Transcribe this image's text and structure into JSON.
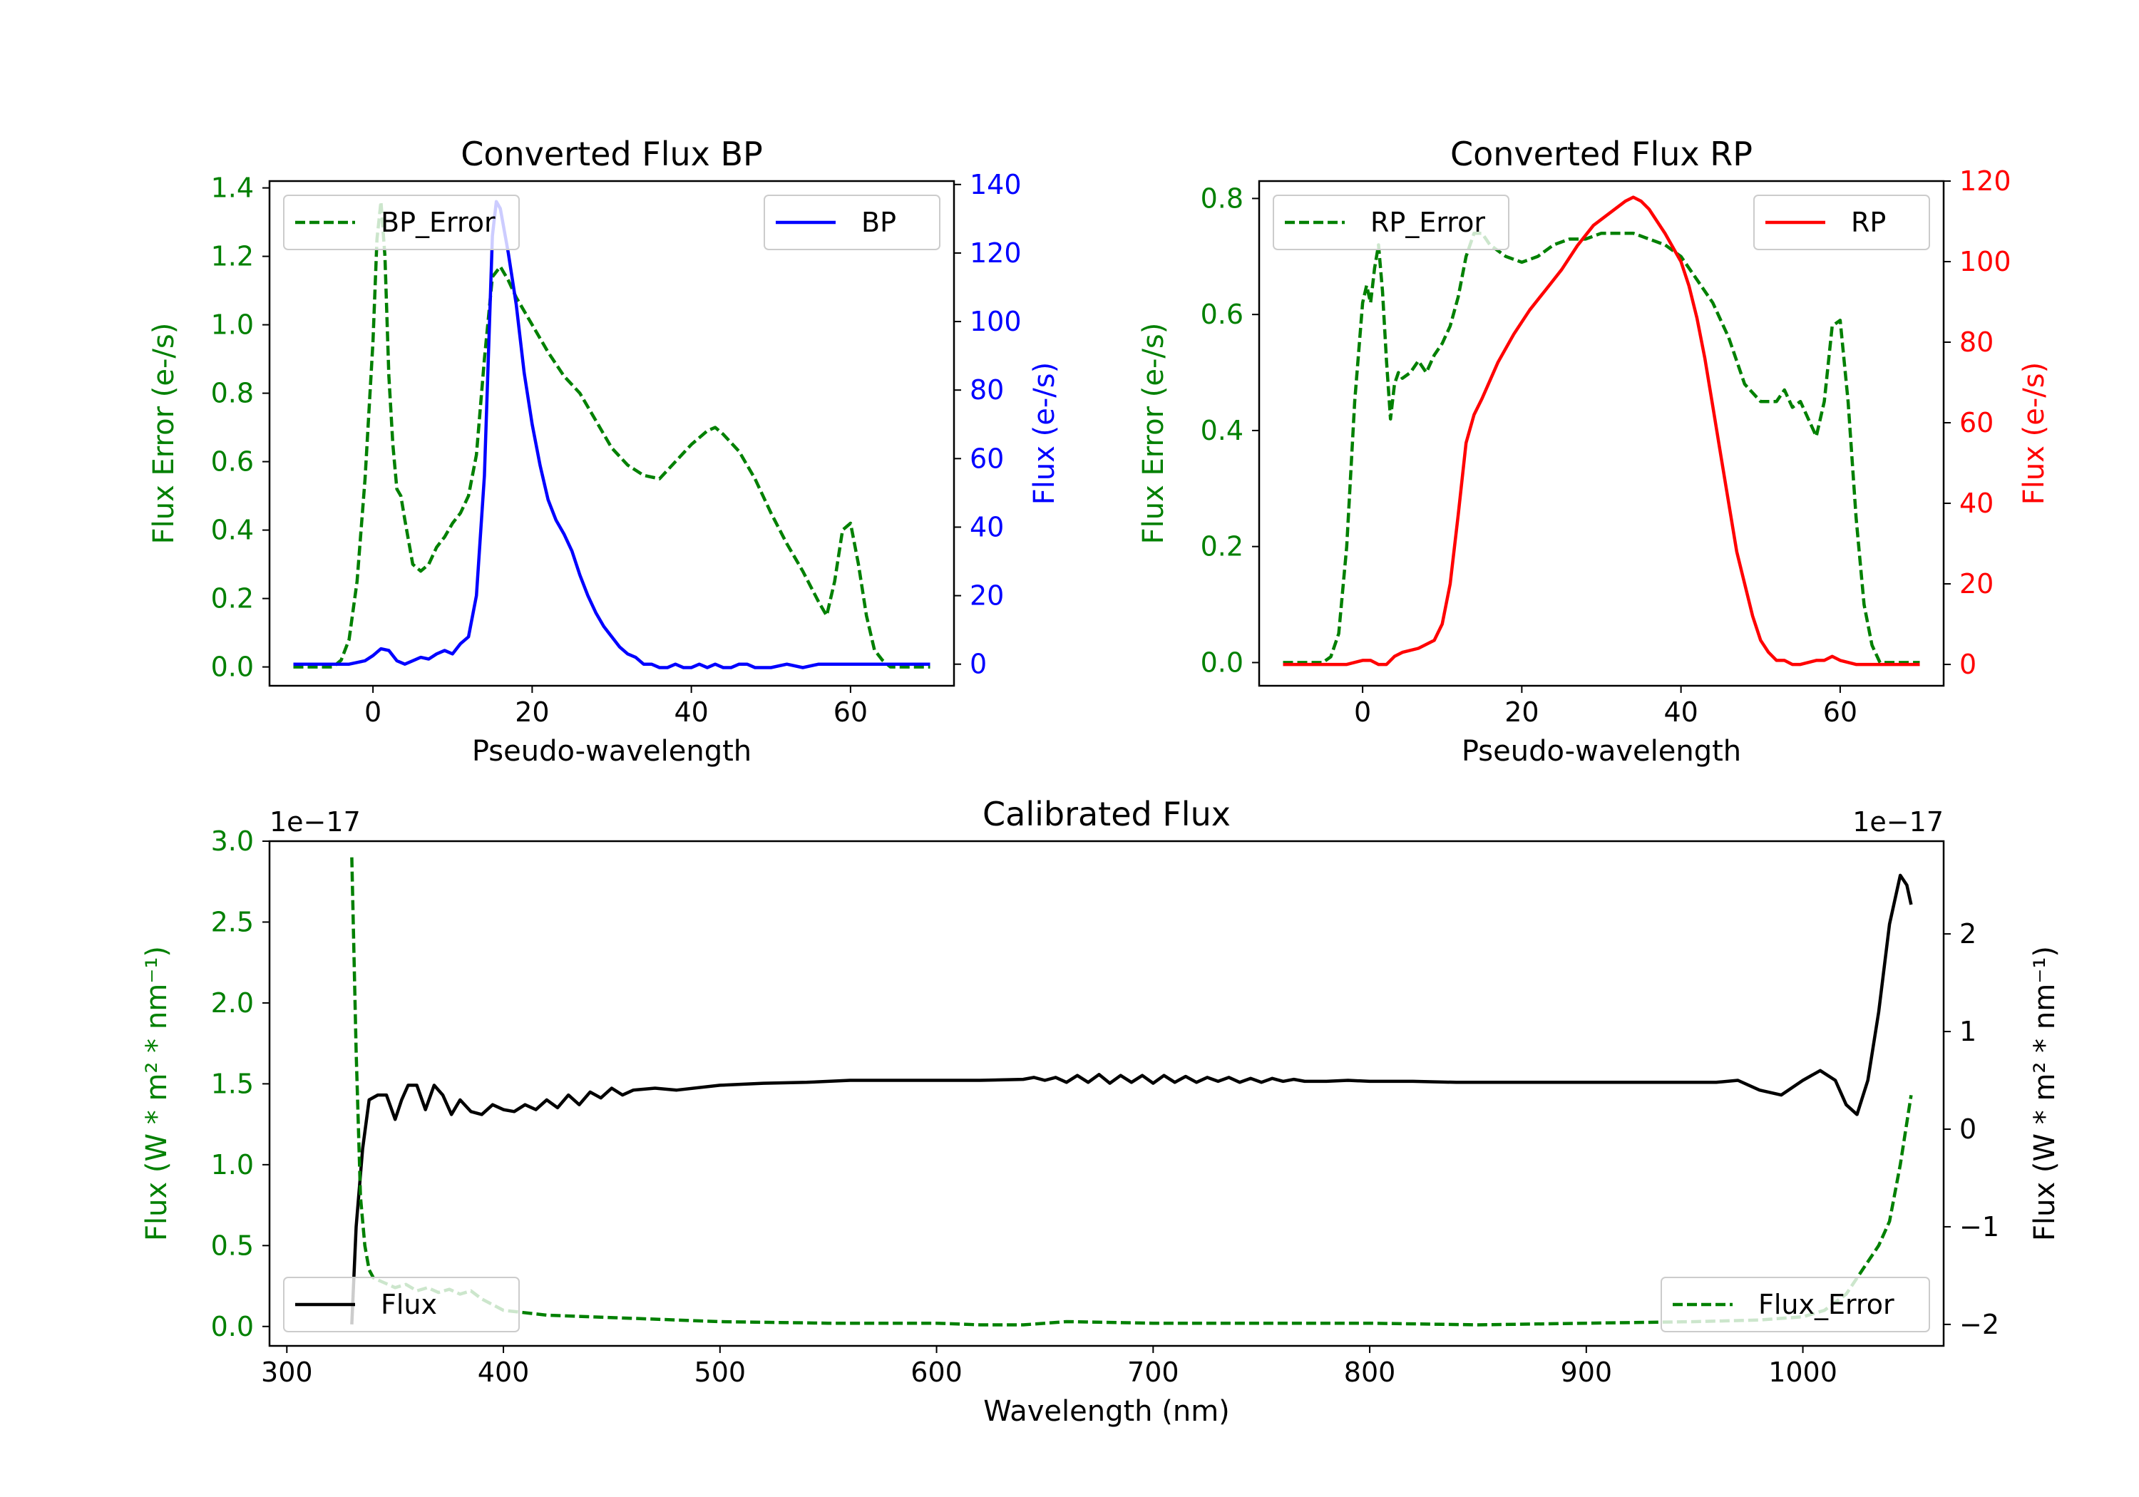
{
  "chart_data": [
    {
      "id": "bp",
      "type": "line",
      "title": "Converted Flux BP",
      "xlabel": "Pseudo-wavelength",
      "xlim": [
        -13,
        73
      ],
      "xticks": [
        0,
        20,
        40,
        60
      ],
      "y_left": {
        "label": "Flux Error (e-/s)",
        "color": "#008000",
        "lim": [
          -0.055,
          1.42
        ],
        "ticks": [
          "0.0",
          "0.2",
          "0.4",
          "0.6",
          "0.8",
          "1.0",
          "1.2",
          "1.4"
        ],
        "tickvals": [
          0,
          0.2,
          0.4,
          0.6,
          0.8,
          1.0,
          1.2,
          1.4
        ]
      },
      "y_right": {
        "label": "Flux (e-/s)",
        "color": "#0000ff",
        "lim": [
          -6.3,
          141
        ],
        "ticks": [
          "0",
          "20",
          "40",
          "60",
          "80",
          "100",
          "120",
          "140"
        ],
        "tickvals": [
          0,
          20,
          40,
          60,
          80,
          100,
          120,
          140
        ]
      },
      "legend_left": "BP_Error",
      "legend_right": "BP",
      "series": [
        {
          "name": "BP_Error",
          "axis": "left",
          "color": "#008000",
          "dash": true,
          "x": [
            -10,
            -5,
            -4,
            -3,
            -2,
            -1,
            0,
            0.5,
            1,
            1.5,
            2,
            2.5,
            3,
            3.5,
            4,
            5,
            6,
            7,
            8,
            9,
            10,
            11,
            12,
            13,
            14,
            15,
            16,
            17,
            18,
            19,
            20,
            22,
            24,
            26,
            28,
            30,
            32,
            34,
            36,
            38,
            40,
            42,
            43,
            44,
            46,
            48,
            50,
            52,
            54,
            56,
            57,
            58,
            59,
            60,
            61,
            62,
            63,
            64,
            65,
            70
          ],
          "y": [
            0,
            0,
            0.02,
            0.08,
            0.25,
            0.55,
            0.95,
            1.25,
            1.36,
            1.2,
            0.85,
            0.65,
            0.52,
            0.5,
            0.43,
            0.3,
            0.28,
            0.3,
            0.35,
            0.38,
            0.42,
            0.45,
            0.5,
            0.62,
            0.9,
            1.14,
            1.17,
            1.13,
            1.08,
            1.04,
            1.0,
            0.92,
            0.85,
            0.8,
            0.72,
            0.64,
            0.59,
            0.56,
            0.55,
            0.6,
            0.65,
            0.69,
            0.7,
            0.68,
            0.63,
            0.55,
            0.45,
            0.36,
            0.28,
            0.19,
            0.15,
            0.25,
            0.4,
            0.42,
            0.3,
            0.15,
            0.05,
            0.02,
            0,
            0
          ]
        },
        {
          "name": "BP",
          "axis": "right",
          "color": "#0000ff",
          "dash": false,
          "x": [
            -10,
            -5,
            -3,
            -2,
            -1,
            0,
            1,
            2,
            3,
            4,
            5,
            6,
            7,
            8,
            9,
            10,
            11,
            12,
            13,
            14,
            15,
            15.5,
            16,
            17,
            18,
            19,
            20,
            21,
            22,
            23,
            24,
            25,
            26,
            27,
            28,
            29,
            30,
            31,
            32,
            33,
            34,
            35,
            36,
            37,
            38,
            39,
            40,
            41,
            42,
            43,
            44,
            45,
            46,
            47,
            48,
            50,
            52,
            54,
            56,
            58,
            60,
            62,
            65,
            70
          ],
          "y": [
            0,
            0,
            0,
            0.5,
            1,
            2.5,
            4.5,
            4,
            1,
            0,
            1,
            2,
            1.5,
            3,
            4,
            3,
            6,
            8,
            20,
            55,
            125,
            135,
            133,
            120,
            105,
            85,
            70,
            58,
            48,
            42,
            38,
            33,
            26,
            20,
            15,
            11,
            8,
            5,
            3,
            2,
            0,
            0,
            -1,
            -1,
            0,
            -1,
            -1,
            0,
            -1,
            0,
            -1,
            -1,
            0,
            0,
            -1,
            -1,
            0,
            -1,
            0,
            0,
            0,
            0,
            0,
            0
          ]
        }
      ]
    },
    {
      "id": "rp",
      "type": "line",
      "title": "Converted Flux RP",
      "xlabel": "Pseudo-wavelength",
      "xlim": [
        -13,
        73
      ],
      "xticks": [
        0,
        20,
        40,
        60
      ],
      "y_left": {
        "label": "Flux Error (e-/s)",
        "color": "#008000",
        "lim": [
          -0.04,
          0.83
        ],
        "ticks": [
          "0.0",
          "0.2",
          "0.4",
          "0.6",
          "0.8"
        ],
        "tickvals": [
          0,
          0.2,
          0.4,
          0.6,
          0.8
        ]
      },
      "y_right": {
        "label": "Flux (e-/s)",
        "color": "#ff0000",
        "lim": [
          -5.3,
          120
        ],
        "ticks": [
          "0",
          "20",
          "40",
          "60",
          "80",
          "100",
          "120"
        ],
        "tickvals": [
          0,
          20,
          40,
          60,
          80,
          100,
          120
        ]
      },
      "legend_left": "RP_Error",
      "legend_right": "RP",
      "series": [
        {
          "name": "RP_Error",
          "axis": "left",
          "color": "#008000",
          "dash": true,
          "x": [
            -10,
            -5,
            -4,
            -3,
            -2,
            -1,
            0,
            0.5,
            1,
            1.5,
            2,
            2.5,
            3,
            3.5,
            4,
            4.5,
            5,
            6,
            7,
            8,
            9,
            10,
            11,
            12,
            13,
            14,
            15,
            16,
            18,
            20,
            22,
            24,
            26,
            28,
            30,
            32,
            34,
            36,
            38,
            40,
            42,
            44,
            46,
            48,
            50,
            52,
            53,
            54,
            55,
            56,
            57,
            58,
            59,
            60,
            61,
            62,
            63,
            64,
            65,
            70
          ],
          "y": [
            0,
            0,
            0.01,
            0.05,
            0.2,
            0.45,
            0.62,
            0.65,
            0.62,
            0.68,
            0.72,
            0.64,
            0.52,
            0.42,
            0.48,
            0.5,
            0.49,
            0.5,
            0.52,
            0.5,
            0.53,
            0.55,
            0.58,
            0.63,
            0.7,
            0.74,
            0.74,
            0.72,
            0.7,
            0.69,
            0.7,
            0.72,
            0.73,
            0.73,
            0.74,
            0.74,
            0.74,
            0.73,
            0.72,
            0.7,
            0.66,
            0.62,
            0.56,
            0.48,
            0.45,
            0.45,
            0.47,
            0.44,
            0.45,
            0.42,
            0.39,
            0.45,
            0.58,
            0.59,
            0.45,
            0.25,
            0.1,
            0.03,
            0,
            0
          ]
        },
        {
          "name": "RP",
          "axis": "right",
          "color": "#ff0000",
          "dash": false,
          "x": [
            -10,
            -5,
            -2,
            0,
            1,
            2,
            3,
            4,
            5,
            7,
            9,
            10,
            11,
            12,
            13,
            14,
            15,
            17,
            19,
            21,
            23,
            25,
            27,
            29,
            31,
            33,
            34,
            35,
            36,
            37,
            38,
            40,
            41,
            42,
            43,
            44,
            45,
            47,
            49,
            50,
            51,
            52,
            53,
            54,
            55,
            57,
            58,
            59,
            60,
            62,
            63,
            65,
            70
          ],
          "y": [
            0,
            0,
            0,
            1,
            1,
            0,
            0,
            2,
            3,
            4,
            6,
            10,
            20,
            37,
            55,
            62,
            66,
            75,
            82,
            88,
            93,
            98,
            104,
            109,
            112,
            115,
            116,
            115,
            113,
            110,
            107,
            100,
            94,
            86,
            76,
            64,
            52,
            28,
            12,
            6,
            3,
            1,
            1,
            0,
            0,
            1,
            1,
            2,
            1,
            0,
            0,
            0,
            0
          ]
        }
      ]
    },
    {
      "id": "cal",
      "type": "line",
      "title": "Calibrated Flux",
      "xlabel": "Wavelength (nm)",
      "xlim": [
        292,
        1065
      ],
      "xticks": [
        300,
        400,
        500,
        600,
        700,
        800,
        900,
        1000
      ],
      "y_left": {
        "label": "Flux (W * m² * nm⁻¹)",
        "offset": "1e−17",
        "color": "#008000",
        "lim": [
          -0.12,
          3.0
        ],
        "ticks": [
          "0.0",
          "0.5",
          "1.0",
          "1.5",
          "2.0",
          "2.5",
          "3.0"
        ],
        "tickvals": [
          0,
          0.5,
          1.0,
          1.5,
          2.0,
          2.5,
          3.0
        ]
      },
      "y_right": {
        "label": "Flux (W * m² * nm⁻¹)",
        "offset": "1e−17",
        "color": "#000000",
        "lim": [
          -2.22,
          2.95
        ],
        "ticks": [
          "−2",
          "−1",
          "0",
          "1",
          "2"
        ],
        "tickvals": [
          -2,
          -1,
          0,
          1,
          2
        ]
      },
      "legend_left": "Flux",
      "legend_right": "Flux_Error",
      "series": [
        {
          "name": "Flux",
          "axis": "right",
          "color": "#000000",
          "dash": false,
          "x": [
            330,
            332,
            335,
            338,
            342,
            346,
            350,
            353,
            356,
            360,
            364,
            368,
            372,
            376,
            380,
            385,
            390,
            395,
            400,
            405,
            410,
            415,
            420,
            425,
            430,
            435,
            440,
            445,
            450,
            455,
            460,
            470,
            480,
            500,
            520,
            540,
            560,
            580,
            600,
            620,
            640,
            645,
            650,
            655,
            660,
            665,
            670,
            675,
            680,
            685,
            690,
            695,
            700,
            705,
            710,
            715,
            720,
            725,
            730,
            735,
            740,
            745,
            750,
            755,
            760,
            765,
            770,
            780,
            790,
            800,
            820,
            840,
            860,
            880,
            900,
            920,
            940,
            960,
            970,
            980,
            990,
            1000,
            1008,
            1015,
            1020,
            1025,
            1030,
            1035,
            1040,
            1045,
            1048,
            1050
          ],
          "y": [
            -2,
            -1,
            -0.2,
            0.3,
            0.35,
            0.35,
            0.1,
            0.3,
            0.45,
            0.45,
            0.2,
            0.45,
            0.35,
            0.15,
            0.3,
            0.18,
            0.15,
            0.25,
            0.2,
            0.18,
            0.25,
            0.2,
            0.3,
            0.22,
            0.35,
            0.25,
            0.38,
            0.32,
            0.42,
            0.35,
            0.4,
            0.42,
            0.4,
            0.45,
            0.47,
            0.48,
            0.5,
            0.5,
            0.5,
            0.5,
            0.51,
            0.53,
            0.5,
            0.53,
            0.48,
            0.55,
            0.48,
            0.56,
            0.47,
            0.55,
            0.48,
            0.55,
            0.47,
            0.55,
            0.48,
            0.54,
            0.48,
            0.53,
            0.49,
            0.53,
            0.48,
            0.52,
            0.48,
            0.52,
            0.49,
            0.51,
            0.49,
            0.49,
            0.5,
            0.49,
            0.49,
            0.48,
            0.48,
            0.48,
            0.48,
            0.48,
            0.48,
            0.48,
            0.5,
            0.4,
            0.35,
            0.5,
            0.6,
            0.5,
            0.25,
            0.15,
            0.5,
            1.2,
            2.1,
            2.6,
            2.5,
            2.3
          ]
        },
        {
          "name": "Flux_Error",
          "axis": "left",
          "color": "#008000",
          "dash": true,
          "x": [
            330,
            332,
            334,
            336,
            338,
            340,
            345,
            350,
            355,
            360,
            365,
            370,
            375,
            380,
            385,
            390,
            400,
            420,
            440,
            460,
            480,
            500,
            550,
            600,
            620,
            640,
            660,
            700,
            750,
            800,
            850,
            900,
            950,
            980,
            1000,
            1010,
            1020,
            1025,
            1030,
            1035,
            1040,
            1045,
            1050
          ],
          "y": [
            2.9,
            1.7,
            0.8,
            0.5,
            0.35,
            0.3,
            0.27,
            0.24,
            0.26,
            0.22,
            0.24,
            0.21,
            0.23,
            0.2,
            0.22,
            0.17,
            0.1,
            0.07,
            0.06,
            0.05,
            0.04,
            0.03,
            0.02,
            0.02,
            0.01,
            0.01,
            0.03,
            0.02,
            0.02,
            0.02,
            0.01,
            0.02,
            0.03,
            0.04,
            0.06,
            0.1,
            0.2,
            0.3,
            0.4,
            0.5,
            0.65,
            1.0,
            1.43
          ]
        }
      ]
    }
  ]
}
